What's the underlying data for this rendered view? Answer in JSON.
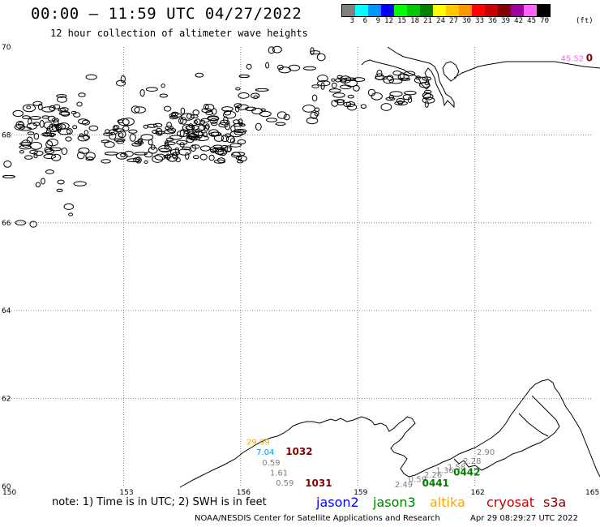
{
  "header": {
    "title": "00:00 – 11:59 UTC 04/27/2022",
    "subtitle": "12 hour collection of altimeter wave heights"
  },
  "color_scale": {
    "labels": [
      "3",
      "6",
      "9",
      "12",
      "15",
      "18",
      "21",
      "24",
      "27",
      "30",
      "33",
      "36",
      "39",
      "42",
      "45",
      "70"
    ],
    "unit": "(ft)",
    "colors": [
      "#7f7f7f",
      "#00ffff",
      "#0096ff",
      "#0000ff",
      "#00ff00",
      "#00c800",
      "#008200",
      "#ffff00",
      "#ffc800",
      "#ff9600",
      "#ff0000",
      "#c80000",
      "#820000",
      "#a000a0",
      "#ff64ff",
      "#000000"
    ]
  },
  "map": {
    "lon_labels": [
      "150",
      "153",
      "156",
      "159",
      "162",
      "165"
    ],
    "lat_labels": [
      "70",
      "68",
      "66",
      "64",
      "62",
      "60"
    ],
    "lon_range": [
      150,
      165
    ],
    "lat_range": [
      60,
      70
    ],
    "grid": "dotted",
    "wave_labels": [
      {
        "text": "29.99",
        "color": "#ffa500",
        "lon": 156.15,
        "lat": 60.95
      },
      {
        "text": "7.04",
        "color": "#0096ff",
        "lon": 156.4,
        "lat": 60.72
      },
      {
        "text": "0.59",
        "color": "#7f7f7f",
        "lon": 156.55,
        "lat": 60.48
      },
      {
        "text": "1.61",
        "color": "#7f7f7f",
        "lon": 156.75,
        "lat": 60.25
      },
      {
        "text": "0.59",
        "color": "#7f7f7f",
        "lon": 156.9,
        "lat": 60.02
      },
      {
        "text": "2.49",
        "color": "#7f7f7f",
        "lon": 159.95,
        "lat": 59.98
      },
      {
        "text": "0.59",
        "color": "#7f7f7f",
        "lon": 160.3,
        "lat": 60.1
      },
      {
        "text": "2.26",
        "color": "#7f7f7f",
        "lon": 160.7,
        "lat": 60.2
      },
      {
        "text": "1.36",
        "color": "#7f7f7f",
        "lon": 161.0,
        "lat": 60.3
      },
      {
        "text": "1.58",
        "color": "#7f7f7f",
        "lon": 161.3,
        "lat": 60.38
      },
      {
        "text": "2.28",
        "color": "#7f7f7f",
        "lon": 161.7,
        "lat": 60.52
      },
      {
        "text": "2.90",
        "color": "#7f7f7f",
        "lon": 162.05,
        "lat": 60.72
      },
      {
        "text": "45.52",
        "color": "#ff64ff",
        "lon": 164.2,
        "lat": 69.68
      }
    ],
    "pass_labels": [
      {
        "text": "1032",
        "color": "#820000",
        "lon": 157.15,
        "lat": 60.72
      },
      {
        "text": "1031",
        "color": "#820000",
        "lon": 157.65,
        "lat": 60.0
      },
      {
        "text": "0441",
        "color": "#008200",
        "lon": 160.65,
        "lat": 60.0
      },
      {
        "text": "0442",
        "color": "#008200",
        "lon": 161.45,
        "lat": 60.25
      },
      {
        "text": "0",
        "color": "#820000",
        "lon": 164.85,
        "lat": 69.68
      }
    ]
  },
  "note": "note: 1) Time is in UTC; 2) SWH is in feet",
  "satellites": [
    {
      "name": "jason2",
      "color": "#0000ff"
    },
    {
      "name": "jason3",
      "color": "#008200"
    },
    {
      "name": "altika",
      "color": "#ffa500"
    },
    {
      "name": "cryosat",
      "color": "#c80000"
    },
    {
      "name": "s3a",
      "color": "#820000"
    }
  ],
  "footer": {
    "credit": "NOAA/NESDIS Center for Satellite Applications and Research",
    "timestamp": "Apr 29 08:29:27 UTC 2022"
  }
}
